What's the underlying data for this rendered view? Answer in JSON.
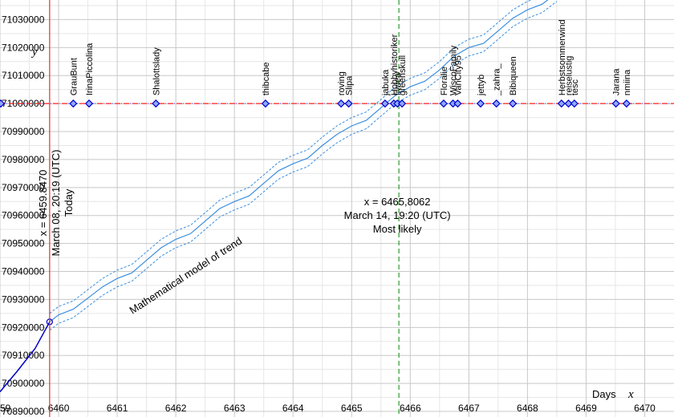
{
  "chart_data": {
    "type": "line",
    "xlim": [
      6459,
      6470.5
    ],
    "ylim": [
      70888000,
      71037000
    ],
    "x_ticks": [
      6459,
      6460,
      6461,
      6462,
      6463,
      6464,
      6465,
      6466,
      6467,
      6468,
      6469,
      6470
    ],
    "y_ticks": [
      70890000,
      70900000,
      70910000,
      70920000,
      70930000,
      70940000,
      70950000,
      70960000,
      70970000,
      70980000,
      70990000,
      71000000,
      71010000,
      71020000,
      71030000
    ],
    "x_axis_title": "Days",
    "x_axis_var": "x",
    "y_axis_var": "y",
    "grid": true,
    "target_y": 71000000,
    "history": {
      "x": [
        6459.0,
        6459.3,
        6459.6,
        6459.847
      ],
      "y": [
        70897000,
        70904500,
        70912500,
        70922000
      ]
    },
    "trend": {
      "label": "Mathematical model of trend",
      "band_width": 3000,
      "x": [
        6459.847,
        6460.0,
        6460.25,
        6460.5,
        6460.75,
        6461.0,
        6461.25,
        6461.5,
        6461.75,
        6462.0,
        6462.25,
        6462.5,
        6462.75,
        6463.0,
        6463.25,
        6463.5,
        6463.75,
        6464.0,
        6464.25,
        6464.5,
        6464.75,
        6465.0,
        6465.25,
        6465.5,
        6465.75,
        6466.0,
        6466.25,
        6466.5,
        6466.75,
        6467.0,
        6467.25,
        6467.5,
        6467.75,
        6468.0,
        6468.25,
        6468.5
      ],
      "y": [
        70922000,
        70924500,
        70926500,
        70930500,
        70934500,
        70937500,
        70939500,
        70944000,
        70948500,
        70951500,
        70953500,
        70958000,
        70962500,
        70965000,
        70967000,
        70971500,
        70976000,
        70978500,
        70980500,
        70985000,
        70989000,
        70992000,
        70994000,
        70998500,
        71003000,
        71006000,
        71008000,
        71012000,
        71017000,
        71020000,
        71021500,
        71026000,
        71030500,
        71033500,
        71035500,
        71039500
      ]
    },
    "markers": [
      {
        "name": "GrauBunt",
        "x": 6460.25
      },
      {
        "name": "IrinaPiccolina",
        "x": 6460.52
      },
      {
        "name": "Shalottslady",
        "x": 6461.66
      },
      {
        "name": "thibcabe",
        "x": 6463.53
      },
      {
        "name": "roving",
        "x": 6464.82
      },
      {
        "name": "Slipa",
        "x": 6464.95
      },
      {
        "name": "jabuka",
        "x": 6465.57
      },
      {
        "name": "Hobbyhistoriker",
        "x": 6465.72
      },
      {
        "name": "fiwiea",
        "x": 6465.78
      },
      {
        "name": "greenskull",
        "x": 6465.86
      },
      {
        "name": "Floralie",
        "x": 6466.57
      },
      {
        "name": "WiscoFamily",
        "x": 6466.73
      },
      {
        "name": "VanCity95",
        "x": 6466.81
      },
      {
        "name": "jettyb",
        "x": 6467.2
      },
      {
        "name": "_zahra_",
        "x": 6467.47
      },
      {
        "name": "Bibiqueen",
        "x": 6467.75
      },
      {
        "name": "Herbstsommerwind",
        "x": 6468.58
      },
      {
        "name": "reiselustig",
        "x": 6468.7
      },
      {
        "name": "tesc",
        "x": 6468.8
      },
      {
        "name": "Jarana",
        "x": 6469.51
      },
      {
        "name": "nmiina",
        "x": 6469.69
      }
    ],
    "today": {
      "x": 6459.847,
      "lines": [
        "x = 6459.8470",
        "March 08, 20:19 (UTC)",
        "Today"
      ]
    },
    "most_likely": {
      "x": 6465.8062,
      "lines": [
        "x = 6465,8062",
        "March 14, 19:20 (UTC)",
        "Most likely"
      ]
    }
  },
  "colors": {
    "grid_major": "#c8c8c8",
    "grid_minor": "#e6e6e6",
    "history": "#0000c8",
    "trend": "#3a8fe0",
    "target_line": "#ff2020",
    "target_line_dash2": "#4060ff",
    "today_line": "#e03030",
    "most_likely_line": "#2e9a2e",
    "marker_fill": "#8fa8ff",
    "marker_stroke": "#0000c8"
  }
}
